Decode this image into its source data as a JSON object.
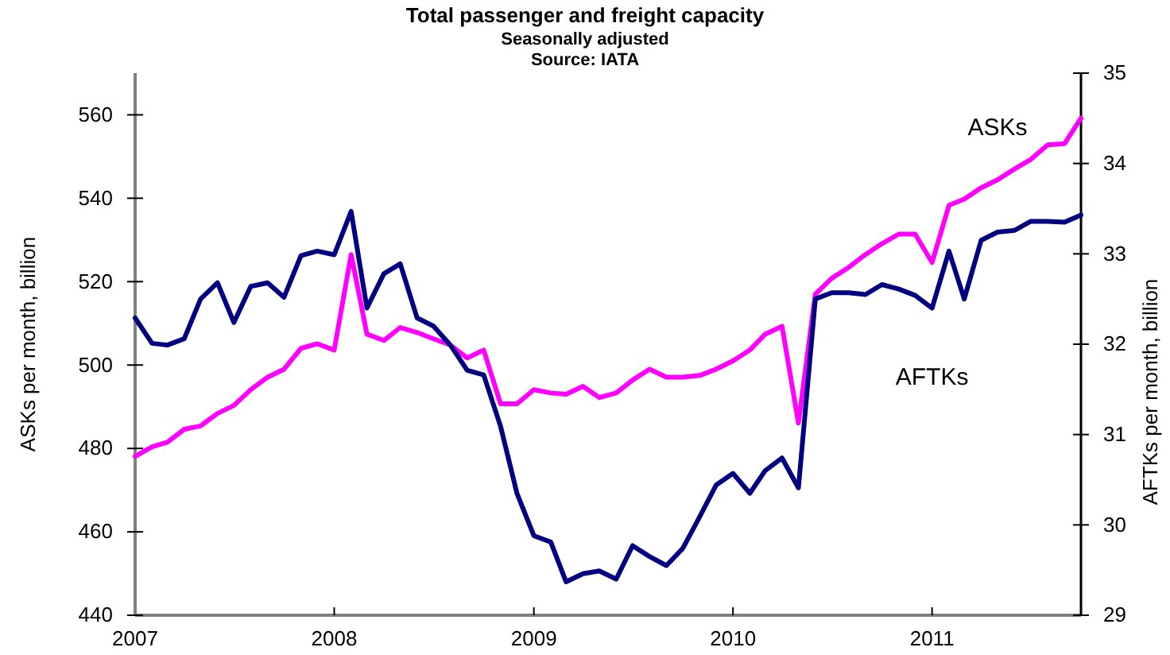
{
  "chart_data": {
    "type": "line",
    "title": "Total passenger and freight capacity",
    "subtitle": "Seasonally adjusted",
    "annotations": [
      "Source: IATA"
    ],
    "ylabel": "ASKs per month, billion",
    "y2label": "AFTKs per month, billion",
    "x": [
      "2007-01",
      "2007-02",
      "2007-03",
      "2007-04",
      "2007-05",
      "2007-06",
      "2007-07",
      "2007-08",
      "2007-09",
      "2007-10",
      "2007-11",
      "2007-12",
      "2008-01",
      "2008-02",
      "2008-03",
      "2008-04",
      "2008-05",
      "2008-06",
      "2008-07",
      "2008-08",
      "2008-09",
      "2008-10",
      "2008-11",
      "2008-12",
      "2009-01",
      "2009-02",
      "2009-03",
      "2009-04",
      "2009-05",
      "2009-06",
      "2009-07",
      "2009-08",
      "2009-09",
      "2009-10",
      "2009-11",
      "2009-12",
      "2010-01",
      "2010-02",
      "2010-03",
      "2010-04",
      "2010-05",
      "2010-06",
      "2010-07",
      "2010-08",
      "2010-09",
      "2010-10",
      "2010-11",
      "2010-12",
      "2011-01",
      "2011-02",
      "2011-03",
      "2011-04",
      "2011-05",
      "2011-06",
      "2011-07",
      "2011-08",
      "2011-09",
      "2011-10"
    ],
    "xlim": [
      "2007-01",
      "2011-10"
    ],
    "xticks": [
      {
        "value": "2007",
        "label": "2007"
      },
      {
        "value": "2008",
        "label": "2008"
      },
      {
        "value": "2009",
        "label": "2009"
      },
      {
        "value": "2010",
        "label": "2010"
      },
      {
        "value": "2011",
        "label": "2011"
      }
    ],
    "ylim": [
      440,
      570
    ],
    "yticks": [
      440,
      460,
      480,
      500,
      520,
      540,
      560
    ],
    "y2lim": [
      29,
      35
    ],
    "y2ticks": [
      29,
      30,
      31,
      32,
      33,
      34,
      35
    ],
    "grid": false,
    "legend": false,
    "marker": "none",
    "line_style": "solid",
    "series": [
      {
        "name": "ASKs",
        "color": "#ff00ff",
        "values": [
          478.1,
          480.4,
          481.5,
          484.6,
          485.4,
          488.4,
          490.3,
          494.1,
          497.1,
          499.0,
          504.0,
          505.1,
          503.6,
          526.5,
          507.4,
          505.9,
          509.0,
          507.8,
          506.3,
          504.8,
          501.7,
          503.6,
          490.7,
          490.7,
          494.1,
          493.3,
          493.0,
          494.9,
          492.2,
          493.3,
          496.4,
          499.0,
          497.1,
          497.1,
          497.5,
          499.0,
          501.0,
          503.6,
          507.4,
          509.3,
          486.1,
          517.0,
          520.8,
          523.4,
          526.5,
          529.1,
          531.4,
          531.4,
          524.6,
          538.3,
          539.8,
          542.5,
          544.4,
          547.0,
          549.3,
          552.8,
          553.1,
          559.2
        ]
      },
      {
        "name": "AFTKs",
        "color": "#000080",
        "axis": "y2",
        "values": [
          32.29,
          32.01,
          31.99,
          32.06,
          32.5,
          32.68,
          32.24,
          32.64,
          32.68,
          32.52,
          32.98,
          33.03,
          32.99,
          33.47,
          32.4,
          32.78,
          32.89,
          32.29,
          32.2,
          31.99,
          31.71,
          31.66,
          31.09,
          30.35,
          29.88,
          29.81,
          29.37,
          29.46,
          29.49,
          29.4,
          29.77,
          29.65,
          29.55,
          29.74,
          30.09,
          30.44,
          30.57,
          30.35,
          30.6,
          30.74,
          30.41,
          32.5,
          32.57,
          32.57,
          32.55,
          32.66,
          32.61,
          32.54,
          32.4,
          33.03,
          32.5,
          33.15,
          33.24,
          33.26,
          33.36,
          33.36,
          33.35,
          33.43
        ]
      }
    ]
  }
}
